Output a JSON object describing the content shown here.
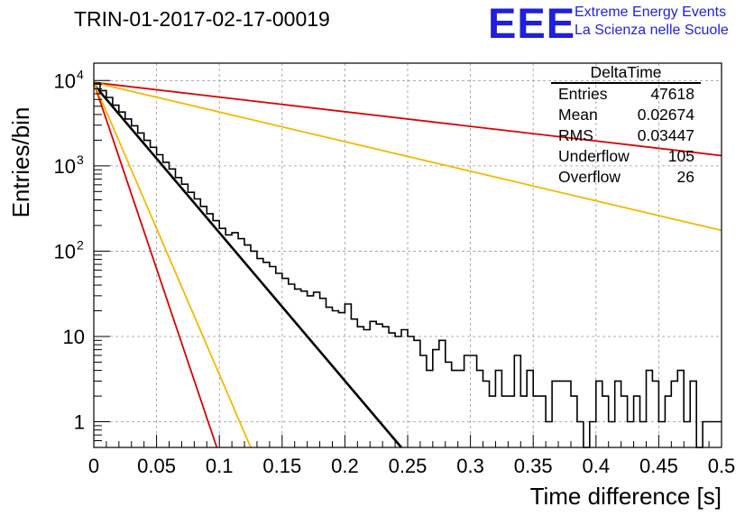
{
  "header": {
    "title": "TRIN-01-2017-02-17-00019",
    "logo_text": "EEE",
    "tagline_1": "Extreme Energy Events",
    "tagline_2": "La Scienza nelle Scuole"
  },
  "stats_box": {
    "title": "DeltaTime",
    "rows": [
      {
        "label": "Entries",
        "value": "47618"
      },
      {
        "label": "Mean",
        "value": "0.02674"
      },
      {
        "label": "RMS",
        "value": "0.03447"
      },
      {
        "label": "Underflow",
        "value": "105"
      },
      {
        "label": "Overflow",
        "value": "26"
      }
    ]
  },
  "colors": {
    "histogram": "#000000",
    "fit": "#000000",
    "red_reference": "#dd0000",
    "yellow_reference": "#f5b800",
    "grid": "#999999"
  },
  "chart_data": {
    "type": "line",
    "title": "TRIN-01-2017-02-17-00019",
    "xlabel": "Time difference [s]",
    "ylabel": "Entries/bin",
    "xlim": [
      0,
      0.5
    ],
    "ylim": [
      0.5,
      16000
    ],
    "y_scale": "log",
    "grid": true,
    "x_ticks": [
      "0",
      "0.05",
      "0.1",
      "0.15",
      "0.2",
      "0.25",
      "0.3",
      "0.35",
      "0.4",
      "0.45",
      "0.5"
    ],
    "y_ticks": [
      {
        "value": 1,
        "base": "1",
        "exp": ""
      },
      {
        "value": 10,
        "base": "10",
        "exp": ""
      },
      {
        "value": 100,
        "base": "10",
        "exp": "2"
      },
      {
        "value": 1000,
        "base": "10",
        "exp": "3"
      },
      {
        "value": 10000,
        "base": "10",
        "exp": "4"
      }
    ],
    "histogram": {
      "bin_width": 0.005,
      "x_start": 0,
      "counts": [
        9330,
        7630,
        6340,
        5150,
        4280,
        3540,
        2950,
        2430,
        1990,
        1650,
        1350,
        1100,
        920,
        730,
        610,
        490,
        410,
        335,
        275,
        228,
        185,
        155,
        165,
        140,
        118,
        100,
        82,
        74,
        66,
        55,
        48,
        41,
        36,
        34,
        30,
        33,
        28,
        22,
        20,
        19,
        24,
        16,
        13,
        12,
        15,
        14,
        13,
        11,
        10,
        12,
        10,
        9,
        6,
        4,
        7,
        9,
        5,
        4,
        4,
        6,
        6,
        4,
        3,
        2,
        4,
        2,
        2,
        6,
        2,
        4,
        2,
        2,
        1,
        3,
        3,
        3,
        2,
        1,
        0.5,
        1,
        3,
        2,
        1,
        3,
        2,
        1,
        2,
        1,
        4,
        3,
        1,
        2,
        3,
        4,
        1,
        3,
        0.5,
        1,
        1,
        1
      ]
    },
    "series": [
      {
        "color": "black",
        "x": [
          0,
          0.245
        ],
        "y": [
          9000,
          0.5
        ]
      },
      {
        "color": "red",
        "x": [
          0,
          0.5
        ],
        "y": [
          9500,
          1320
        ]
      },
      {
        "color": "red",
        "x": [
          0,
          0.098
        ],
        "y": [
          9500,
          0.5
        ]
      },
      {
        "color": "yellow",
        "x": [
          0,
          0.5
        ],
        "y": [
          9500,
          175
        ]
      },
      {
        "color": "yellow",
        "x": [
          0,
          0.125
        ],
        "y": [
          9500,
          0.5
        ]
      }
    ]
  }
}
